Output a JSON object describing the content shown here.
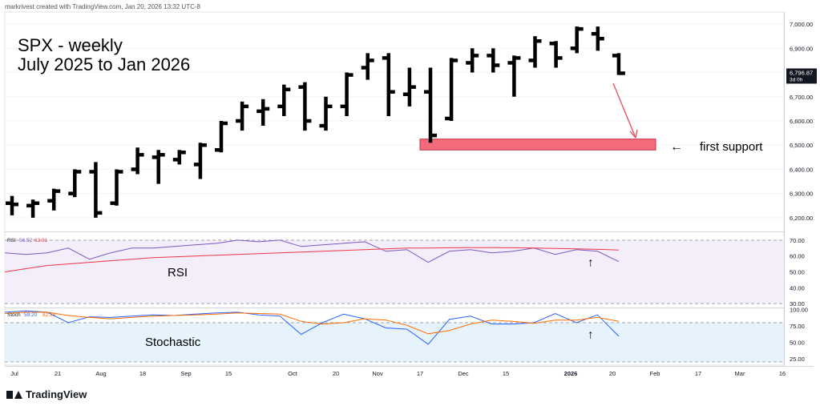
{
  "header": {
    "credit": "markrivest created with TradingView.com, Jan 20, 2026 13:32 UTC-8"
  },
  "logo": {
    "text": "TradingView"
  },
  "annotations": {
    "title_line1": "SPX - weekly",
    "title_line2": "July 2025 to Jan 2026",
    "support_label": "first support",
    "support_arrow": "←",
    "rsi_label": "RSI",
    "stoch_label": "Stochastic"
  },
  "colors": {
    "bars": "#000000",
    "support_zone": "#f36b7a",
    "arrow": "#e84a5f",
    "rsi_line": "#7e57c2",
    "rsi_ma": "#f23645",
    "rsi_band": "#f3eefa",
    "stoch_k": "#2962ff",
    "stoch_d": "#ff6d00",
    "stoch_band": "#e6f3fc"
  },
  "chart_data": [
    {
      "type": "ohlc",
      "title": "SPX - weekly",
      "ylim": [
        6150,
        7050
      ],
      "y_ticks": [
        "7,000.00",
        "6,900.00",
        "6,800.00",
        "6,700.00",
        "6,600.00",
        "6,500.00",
        "6,400.00",
        "6,300.00",
        "6,200.00"
      ],
      "last_price_label": "6,796.87",
      "countdown_label": "3d 0h",
      "x_ticks": [
        "Jul",
        "21",
        "Aug",
        "18",
        "Sep",
        "15",
        "Oct",
        "20",
        "Nov",
        "17",
        "Dec",
        "15",
        "2026",
        "20",
        "Feb",
        "17",
        "Mar",
        "16"
      ],
      "bars": [
        {
          "o": 6260,
          "h": 6290,
          "l": 6210,
          "c": 6255
        },
        {
          "o": 6250,
          "h": 6275,
          "l": 6200,
          "c": 6260
        },
        {
          "o": 6270,
          "h": 6320,
          "l": 6230,
          "c": 6310
        },
        {
          "o": 6300,
          "h": 6400,
          "l": 6285,
          "c": 6390
        },
        {
          "o": 6390,
          "h": 6430,
          "l": 6200,
          "c": 6220
        },
        {
          "o": 6260,
          "h": 6400,
          "l": 6250,
          "c": 6390
        },
        {
          "o": 6400,
          "h": 6490,
          "l": 6380,
          "c": 6460
        },
        {
          "o": 6450,
          "h": 6480,
          "l": 6340,
          "c": 6460
        },
        {
          "o": 6440,
          "h": 6480,
          "l": 6420,
          "c": 6470
        },
        {
          "o": 6420,
          "h": 6510,
          "l": 6360,
          "c": 6500
        },
        {
          "o": 6480,
          "h": 6600,
          "l": 6470,
          "c": 6590
        },
        {
          "o": 6600,
          "h": 6680,
          "l": 6560,
          "c": 6660
        },
        {
          "o": 6640,
          "h": 6690,
          "l": 6580,
          "c": 6650
        },
        {
          "o": 6660,
          "h": 6750,
          "l": 6620,
          "c": 6730
        },
        {
          "o": 6740,
          "h": 6760,
          "l": 6560,
          "c": 6600
        },
        {
          "o": 6580,
          "h": 6700,
          "l": 6560,
          "c": 6660
        },
        {
          "o": 6660,
          "h": 6800,
          "l": 6620,
          "c": 6790
        },
        {
          "o": 6820,
          "h": 6880,
          "l": 6770,
          "c": 6850
        },
        {
          "o": 6860,
          "h": 6880,
          "l": 6620,
          "c": 6720
        },
        {
          "o": 6710,
          "h": 6820,
          "l": 6660,
          "c": 6740
        },
        {
          "o": 6720,
          "h": 6820,
          "l": 6510,
          "c": 6540
        },
        {
          "o": 6610,
          "h": 6860,
          "l": 6600,
          "c": 6850
        },
        {
          "o": 6840,
          "h": 6900,
          "l": 6800,
          "c": 6870
        },
        {
          "o": 6870,
          "h": 6900,
          "l": 6800,
          "c": 6830
        },
        {
          "o": 6840,
          "h": 6870,
          "l": 6700,
          "c": 6860
        },
        {
          "o": 6850,
          "h": 6950,
          "l": 6820,
          "c": 6930
        },
        {
          "o": 6920,
          "h": 6930,
          "l": 6820,
          "c": 6860
        },
        {
          "o": 6900,
          "h": 6990,
          "l": 6880,
          "c": 6980
        },
        {
          "o": 6960,
          "h": 6990,
          "l": 6890,
          "c": 6940
        },
        {
          "o": 6870,
          "h": 6880,
          "l": 6790,
          "c": 6797
        }
      ],
      "support_zone": {
        "from": 6480,
        "to": 6525,
        "label": "first support"
      }
    },
    {
      "type": "line",
      "title": "RSI",
      "legend": [
        "RSI",
        "56.52",
        "63.81"
      ],
      "ylim": [
        28,
        74
      ],
      "y_ticks": [
        "70.00",
        "60.00",
        "50.00",
        "40.00",
        "30.00"
      ],
      "band": [
        30,
        70
      ],
      "series": [
        {
          "name": "RSI",
          "values": [
            62,
            61,
            62,
            65,
            58,
            62,
            65,
            65,
            66,
            67,
            68,
            70,
            69,
            70,
            66,
            67,
            68,
            69,
            63,
            64,
            56,
            63,
            64,
            62,
            63,
            65,
            61,
            64,
            63,
            56.52
          ]
        },
        {
          "name": "RSI MA",
          "values": [
            50,
            52,
            54,
            55,
            56,
            57,
            58,
            59,
            59.5,
            60,
            60.5,
            61,
            61.5,
            62,
            62.5,
            63,
            63.5,
            64,
            64.5,
            65,
            65,
            65.2,
            65.3,
            65.3,
            65.2,
            65,
            64.8,
            64.5,
            64.2,
            63.81
          ]
        }
      ],
      "marker": "↑"
    },
    {
      "type": "line",
      "title": "Stochastic",
      "legend": [
        "Stoch",
        "59.20",
        "82.19"
      ],
      "ylim": [
        15,
        102
      ],
      "y_ticks": [
        "100.00",
        "75.00",
        "50.00",
        "25.00"
      ],
      "band": [
        20,
        80
      ],
      "series": [
        {
          "name": "%K",
          "values": [
            96,
            98,
            96,
            80,
            89,
            88,
            90,
            92,
            91,
            93,
            95,
            96,
            92,
            90,
            62,
            80,
            93,
            86,
            72,
            70,
            47,
            85,
            90,
            78,
            78,
            80,
            94,
            80,
            92,
            59.2
          ]
        },
        {
          "name": "%D",
          "values": [
            94,
            96,
            96,
            91,
            88,
            86,
            88,
            90,
            91,
            92,
            93,
            95,
            94,
            93,
            82,
            78,
            80,
            86,
            84,
            76,
            63,
            68,
            78,
            84,
            82,
            79,
            84,
            84,
            88,
            82.19
          ]
        }
      ],
      "marker": "↑"
    }
  ]
}
